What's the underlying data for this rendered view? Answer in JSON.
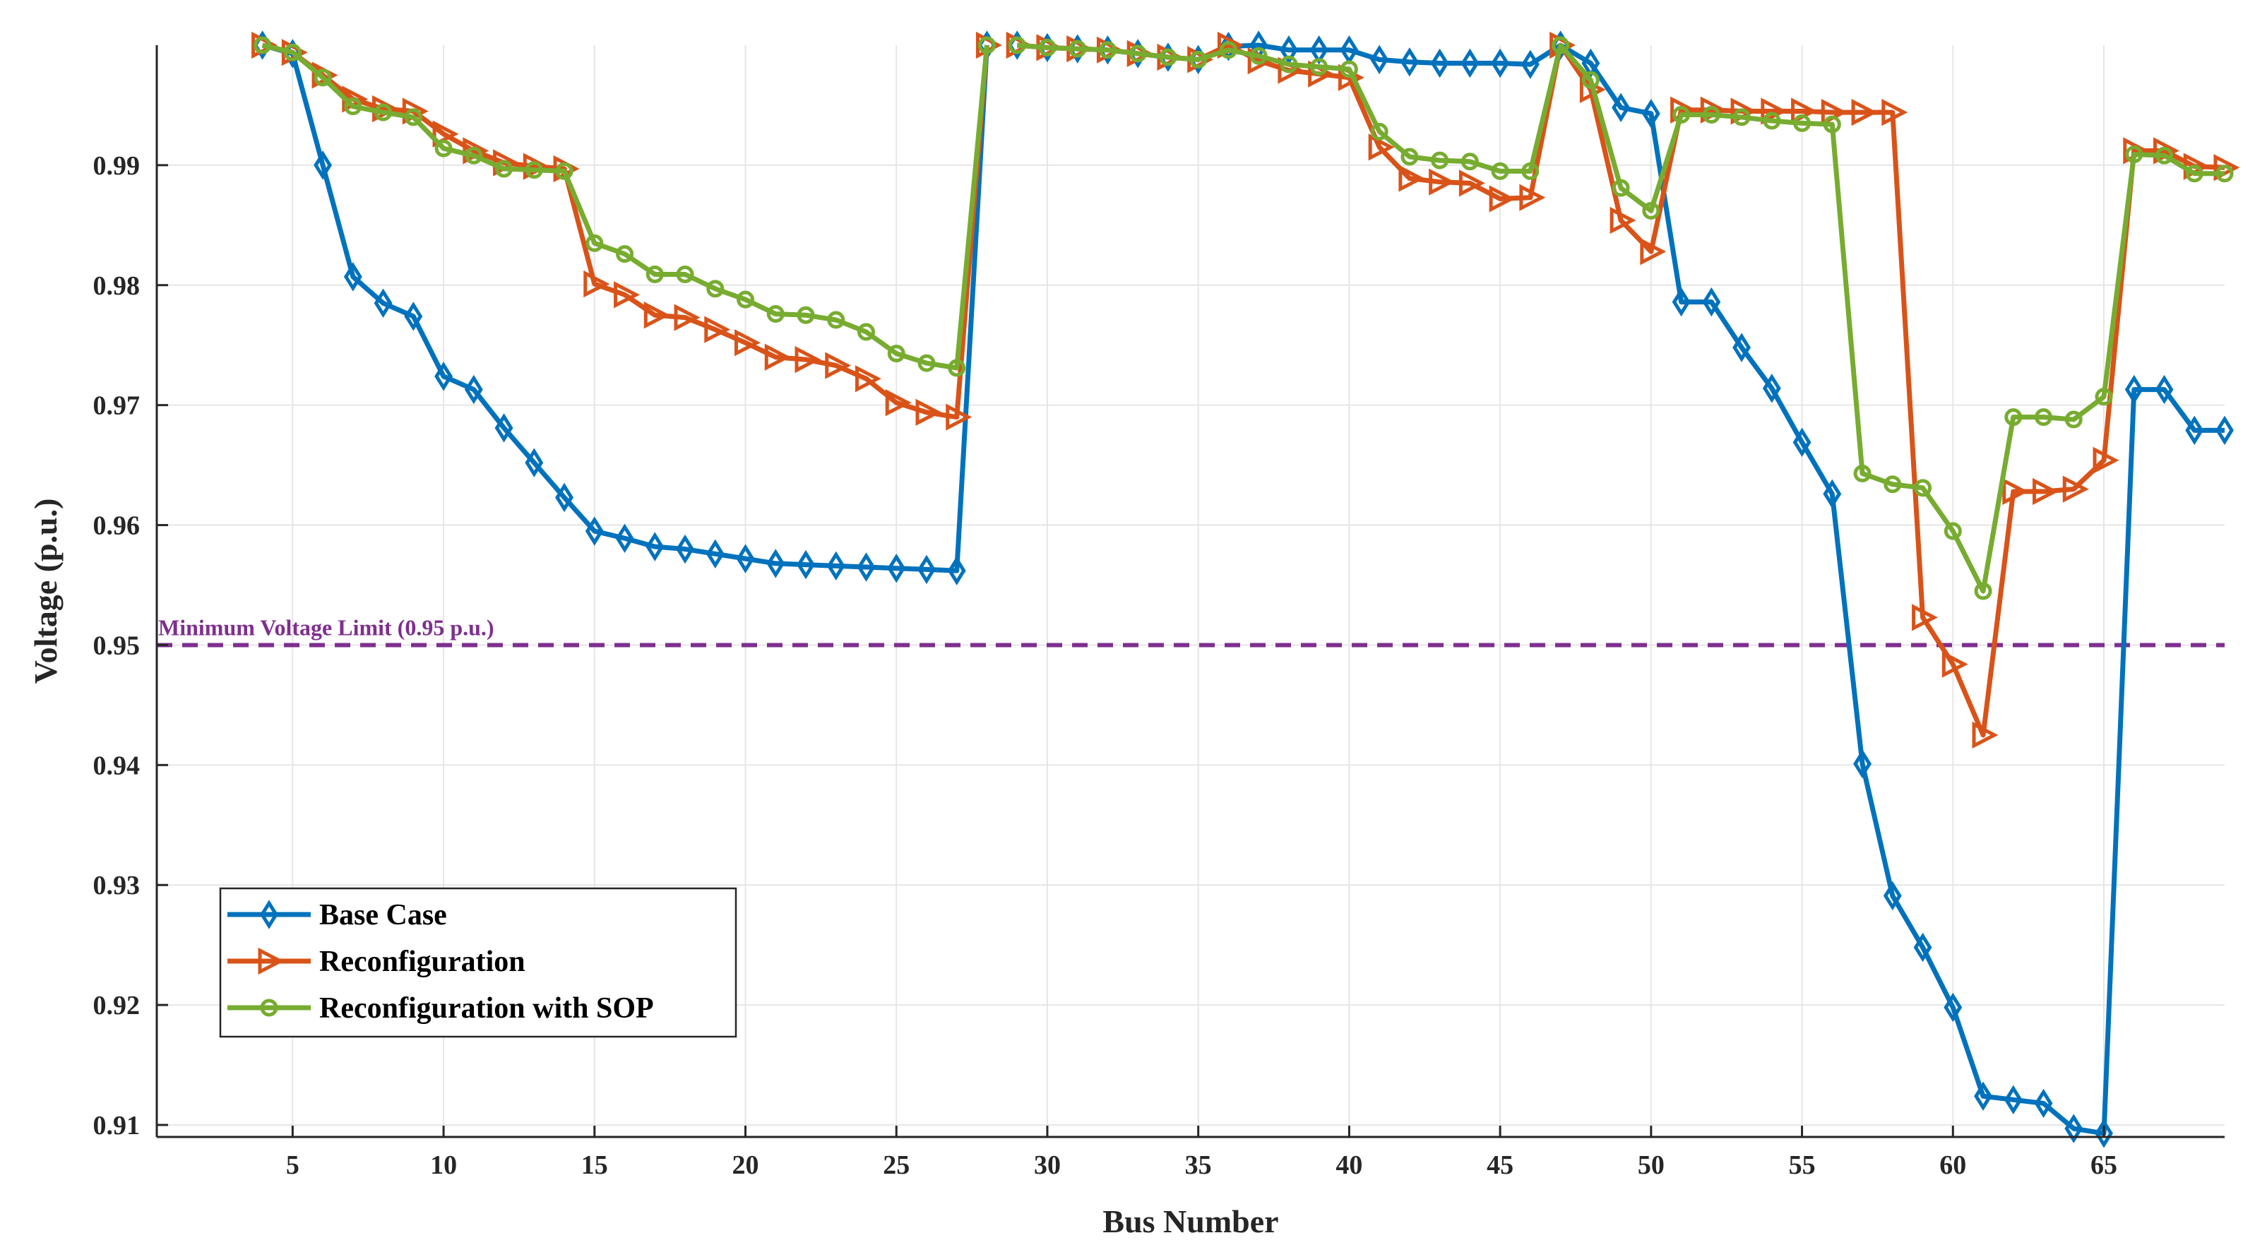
{
  "chart_data": {
    "type": "line",
    "title": "",
    "xlabel": "Bus Number",
    "ylabel": "Voltage (p.u.)",
    "xlim": [
      0.5,
      69
    ],
    "ylim": [
      0.909,
      1.0
    ],
    "xticks": [
      5,
      10,
      15,
      20,
      25,
      30,
      35,
      40,
      45,
      50,
      55,
      60,
      65
    ],
    "yticks": [
      0.91,
      0.92,
      0.93,
      0.94,
      0.95,
      0.96,
      0.97,
      0.98,
      0.99
    ],
    "ytick_labels": [
      "0.91",
      "0.92",
      "0.93",
      "0.94",
      "0.95",
      "0.96",
      "0.97",
      "0.98",
      "0.99"
    ],
    "grid": true,
    "legend_position": "bottom-left",
    "reference_line": {
      "y": 0.95,
      "label": "Minimum Voltage Limit (0.95 p.u.)",
      "color": "#7E2F8E"
    },
    "series": [
      {
        "name": "Base Case",
        "color": "#0072BD",
        "marker": "diamond",
        "segments": [
          {
            "x": [
              4,
              5,
              6,
              7,
              8,
              9,
              10,
              11,
              12,
              13,
              14,
              15,
              16,
              17,
              18,
              19,
              20,
              21,
              22,
              23,
              24,
              25,
              26,
              27,
              28
            ],
            "y": [
              1.0,
              0.9993,
              0.99,
              0.9807,
              0.9785,
              0.9774,
              0.9724,
              0.9713,
              0.9681,
              0.9652,
              0.9623,
              0.9595,
              0.9589,
              0.9582,
              0.958,
              0.9576,
              0.9572,
              0.9568,
              0.9567,
              0.9566,
              0.9565,
              0.9564,
              0.9563,
              0.9562,
              1.0
            ]
          },
          {
            "x": [
              29,
              30,
              31,
              32,
              33,
              34,
              35,
              36,
              37,
              38,
              39,
              40,
              41,
              42,
              43,
              44,
              45,
              46,
              47,
              48,
              49,
              50,
              51,
              52,
              53,
              54,
              55,
              56,
              57,
              58,
              59,
              60,
              61,
              62,
              63,
              64,
              65,
              66,
              67,
              68,
              69
            ],
            "y": [
              1.0,
              0.9998,
              0.9997,
              0.9996,
              0.9993,
              0.999,
              0.9988,
              0.9999,
              1.0,
              0.9996,
              0.9996,
              0.9996,
              0.9988,
              0.9986,
              0.9985,
              0.9985,
              0.9985,
              0.9984,
              1.0,
              0.9985,
              0.9948,
              0.9943,
              0.9786,
              0.9786,
              0.9748,
              0.9714,
              0.9669,
              0.9626,
              0.9401,
              0.9291,
              0.9248,
              0.9198,
              0.9124,
              0.9121,
              0.9118,
              0.9097,
              0.9093,
              0.9713,
              0.9713,
              0.9679,
              0.9679
            ]
          }
        ]
      },
      {
        "name": "Reconfiguration",
        "color": "#D95319",
        "marker": "triangle-right",
        "segments": [
          {
            "x": [
              4,
              5,
              6,
              7,
              8,
              9,
              10,
              11,
              12,
              13,
              14,
              15,
              16,
              17,
              18,
              19,
              20,
              21,
              22,
              23,
              24,
              25,
              26,
              27,
              28
            ],
            "y": [
              1.0,
              0.9994,
              0.9975,
              0.9955,
              0.9947,
              0.9945,
              0.9926,
              0.9912,
              0.9902,
              0.9899,
              0.9897,
              0.9801,
              0.9792,
              0.9775,
              0.9773,
              0.9763,
              0.9752,
              0.974,
              0.9738,
              0.9733,
              0.9722,
              0.9702,
              0.9694,
              0.969,
              1.0
            ]
          },
          {
            "x": [
              29,
              30,
              31,
              32,
              33,
              34,
              35,
              36,
              37,
              38,
              39,
              40,
              41,
              42,
              43,
              44,
              45,
              46,
              47,
              48,
              49,
              50,
              51,
              52,
              53,
              54,
              55,
              56,
              57,
              58,
              59,
              60,
              61,
              62,
              63,
              64,
              65,
              66,
              67,
              68,
              69
            ],
            "y": [
              1.0,
              0.9998,
              0.9997,
              0.9996,
              0.9993,
              0.999,
              0.9988,
              1.0,
              0.9987,
              0.9979,
              0.9976,
              0.9973,
              0.9915,
              0.9889,
              0.9886,
              0.9885,
              0.9872,
              0.9873,
              1.0,
              0.9963,
              0.9854,
              0.9828,
              0.9946,
              0.9946,
              0.9945,
              0.9945,
              0.9945,
              0.9944,
              0.9944,
              0.9944,
              0.9523,
              0.9484,
              0.9425,
              0.9628,
              0.9628,
              0.963,
              0.9654,
              0.9912,
              0.9912,
              0.9899,
              0.9898
            ]
          }
        ]
      },
      {
        "name": "Reconfiguration with SOP",
        "color": "#77AC30",
        "marker": "circle",
        "segments": [
          {
            "x": [
              4,
              5,
              6,
              7,
              8,
              9,
              10,
              11,
              12,
              13,
              14,
              15,
              16,
              17,
              18,
              19,
              20,
              21,
              22,
              23,
              24,
              25,
              26,
              27,
              28
            ],
            "y": [
              1.0,
              0.9994,
              0.9973,
              0.9949,
              0.9944,
              0.994,
              0.9914,
              0.9908,
              0.9897,
              0.9896,
              0.9895,
              0.9835,
              0.9826,
              0.9809,
              0.9809,
              0.9797,
              0.9788,
              0.9776,
              0.9775,
              0.9771,
              0.9761,
              0.9743,
              0.9735,
              0.9731,
              1.0
            ]
          },
          {
            "x": [
              29,
              30,
              31,
              32,
              33,
              34,
              35,
              36,
              37,
              38,
              39,
              40,
              41,
              42,
              43,
              44,
              45,
              46,
              47,
              48,
              49,
              50,
              51,
              52,
              53,
              54,
              55,
              56,
              57,
              58,
              59,
              60,
              61,
              62,
              63,
              64,
              65,
              66,
              67,
              68,
              69
            ],
            "y": [
              1.0,
              0.9998,
              0.9997,
              0.9996,
              0.9993,
              0.999,
              0.9988,
              0.9996,
              0.9991,
              0.9984,
              0.9982,
              0.998,
              0.9928,
              0.9907,
              0.9904,
              0.9903,
              0.9895,
              0.9895,
              1.0,
              0.9971,
              0.9881,
              0.9862,
              0.9942,
              0.9942,
              0.994,
              0.9937,
              0.9935,
              0.9934,
              0.9643,
              0.9634,
              0.9631,
              0.9595,
              0.9545,
              0.969,
              0.969,
              0.9688,
              0.9707,
              0.9909,
              0.9908,
              0.9893,
              0.9893
            ]
          }
        ]
      }
    ]
  }
}
